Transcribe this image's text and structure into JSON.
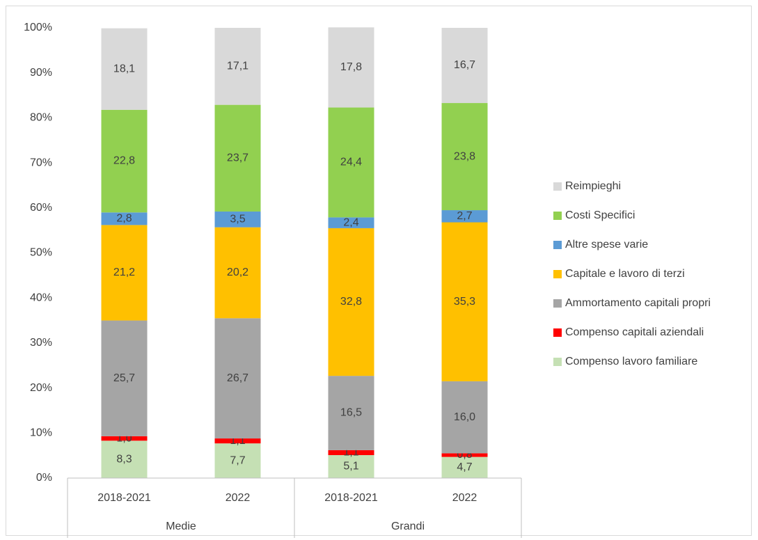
{
  "chart_data": {
    "type": "stacked-bar",
    "categories": [
      "2018-2021",
      "2022",
      "2018-2021",
      "2022"
    ],
    "groups": [
      "Medie",
      "Grandi"
    ],
    "ylim": [
      0,
      100
    ],
    "yticks": [
      {
        "value": 0,
        "label": "0%"
      },
      {
        "value": 10,
        "label": "10%"
      },
      {
        "value": 20,
        "label": "20%"
      },
      {
        "value": 30,
        "label": "30%"
      },
      {
        "value": 40,
        "label": "40%"
      },
      {
        "value": 50,
        "label": "50%"
      },
      {
        "value": 60,
        "label": "60%"
      },
      {
        "value": 70,
        "label": "70%"
      },
      {
        "value": 80,
        "label": "80%"
      },
      {
        "value": 90,
        "label": "90%"
      },
      {
        "value": 100,
        "label": "100%"
      }
    ],
    "grid": false,
    "legend": "right",
    "series": [
      {
        "name": "Compenso lavoro familiare",
        "color": "#c5e0b4",
        "values": [
          8.3,
          7.7,
          5.1,
          4.7
        ],
        "value_labels": [
          "8,3",
          "7,7",
          "5,1",
          "4,7"
        ]
      },
      {
        "name": "Compenso capitali aziendali",
        "color": "#ff0000",
        "values": [
          1.0,
          1.1,
          1.1,
          0.8
        ],
        "value_labels": [
          "1,0",
          "1,1",
          "1,1",
          "0,8"
        ]
      },
      {
        "name": "Ammortamento capitali propri",
        "color": "#a5a5a5",
        "values": [
          25.7,
          26.7,
          16.5,
          16.0
        ],
        "value_labels": [
          "25,7",
          "26,7",
          "16,5",
          "16,0"
        ]
      },
      {
        "name": "Capitale e lavoro di terzi",
        "color": "#ffc000",
        "values": [
          21.2,
          20.2,
          32.8,
          35.3
        ],
        "value_labels": [
          "21,2",
          "20,2",
          "32,8",
          "35,3"
        ]
      },
      {
        "name": "Altre spese varie",
        "color": "#5b9bd5",
        "values": [
          2.8,
          3.5,
          2.4,
          2.7
        ],
        "value_labels": [
          "2,8",
          "3,5",
          "2,4",
          "2,7"
        ]
      },
      {
        "name": "Costi Specifici",
        "color": "#92d050",
        "values": [
          22.8,
          23.7,
          24.4,
          23.8
        ],
        "value_labels": [
          "22,8",
          "23,7",
          "24,4",
          "23,8"
        ]
      },
      {
        "name": "Reimpieghi",
        "color": "#d9d9d9",
        "values": [
          18.1,
          17.1,
          17.8,
          16.7
        ],
        "value_labels": [
          "18,1",
          "17,1",
          "17,8",
          "16,7"
        ]
      }
    ]
  }
}
